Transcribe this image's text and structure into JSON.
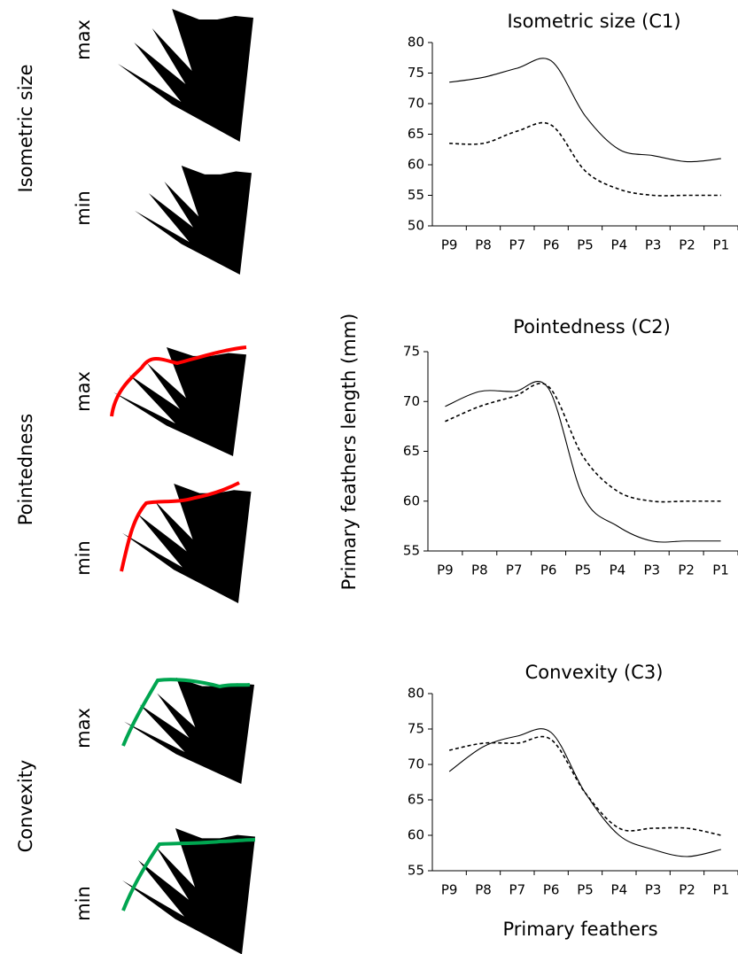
{
  "panels": [
    {
      "label": "Isometric size",
      "max": "max",
      "min": "min"
    },
    {
      "label": "Pointedness",
      "max": "max",
      "min": "min"
    },
    {
      "label": "Convexity",
      "max": "max",
      "min": "min"
    }
  ],
  "y_label": "Primary feathers length (mm)",
  "x_label": "Primary feathers",
  "chart_data": [
    {
      "type": "line",
      "title": "Isometric size (C1)",
      "categories": [
        "P9",
        "P8",
        "P7",
        "P6",
        "P5",
        "P4",
        "P3",
        "P2",
        "P1"
      ],
      "series": [
        {
          "color": "#000000",
          "style": "solid",
          "values": [
            73.5,
            74.3,
            75.8,
            77,
            68,
            62.5,
            61.5,
            60.5,
            61
          ]
        },
        {
          "color": "#000000",
          "style": "dashed",
          "values": [
            63.5,
            63.5,
            65.5,
            66.5,
            59,
            56,
            55,
            55,
            55
          ]
        }
      ],
      "ylim": [
        50,
        80
      ],
      "yticks": [
        50,
        55,
        60,
        65,
        70,
        75,
        80
      ]
    },
    {
      "type": "line",
      "title": "Pointedness (C2)",
      "categories": [
        "P9",
        "P8",
        "P7",
        "P6",
        "P5",
        "P4",
        "P3",
        "P2",
        "P1"
      ],
      "series": [
        {
          "color": "#000000",
          "style": "solid",
          "values": [
            69.5,
            71,
            71,
            71.3,
            60.5,
            57.5,
            56,
            56,
            56
          ]
        },
        {
          "color": "#000000",
          "style": "dashed",
          "values": [
            68,
            69.5,
            70.5,
            71.5,
            64.5,
            61,
            60,
            60,
            60
          ]
        }
      ],
      "ylim": [
        55,
        75
      ],
      "yticks": [
        55,
        60,
        65,
        70,
        75
      ]
    },
    {
      "type": "line",
      "title": "Convexity (C3)",
      "categories": [
        "P9",
        "P8",
        "P7",
        "P6",
        "P5",
        "P4",
        "P3",
        "P2",
        "P1"
      ],
      "series": [
        {
          "color": "#000000",
          "style": "solid",
          "values": [
            69,
            72.5,
            74,
            74.5,
            66,
            60,
            58,
            57,
            58
          ]
        },
        {
          "color": "#000000",
          "style": "dashed",
          "values": [
            72,
            73,
            73,
            73.5,
            66,
            61,
            61,
            61,
            60
          ]
        }
      ],
      "ylim": [
        55,
        80
      ],
      "yticks": [
        55,
        60,
        65,
        70,
        75,
        80
      ]
    }
  ]
}
